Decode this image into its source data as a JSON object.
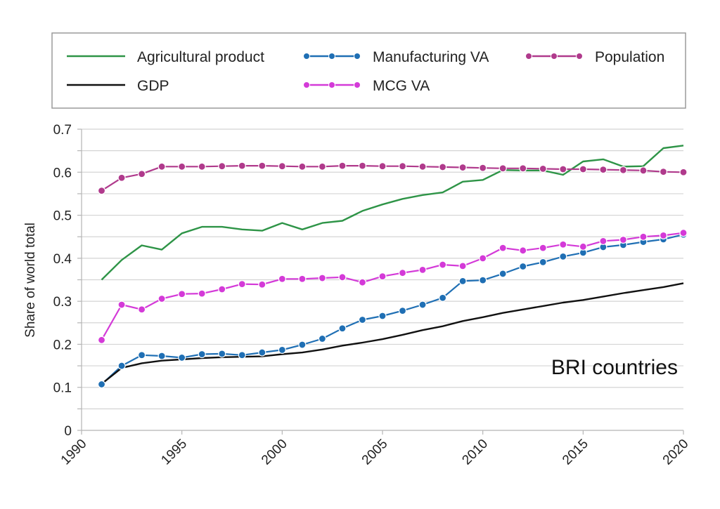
{
  "chart_data": {
    "type": "line",
    "title": "",
    "xlabel": "",
    "ylabel": "Share of world total",
    "annotation": "BRI countries",
    "xlim": [
      1990,
      2020
    ],
    "ylim": [
      0,
      0.7
    ],
    "xticks": [
      "1990",
      "1995",
      "2000",
      "2005",
      "2010",
      "2015",
      "2020"
    ],
    "yticks": [
      "0",
      "0.1",
      "0.2",
      "0.3",
      "0.4",
      "0.5",
      "0.6",
      "0.7"
    ],
    "grid": true,
    "legend_position": "top",
    "x": [
      1991,
      1992,
      1993,
      1994,
      1995,
      1996,
      1997,
      1998,
      1999,
      2000,
      2001,
      2002,
      2003,
      2004,
      2005,
      2006,
      2007,
      2008,
      2009,
      2010,
      2011,
      2012,
      2013,
      2014,
      2015,
      2016,
      2017,
      2018,
      2019,
      2020
    ],
    "series": [
      {
        "name": "Agricultural product",
        "color": "#2e9447",
        "markers": false,
        "values": [
          0.35,
          0.396,
          0.43,
          0.42,
          0.458,
          0.473,
          0.473,
          0.467,
          0.464,
          0.482,
          0.467,
          0.482,
          0.487,
          0.51,
          0.525,
          0.538,
          0.547,
          0.553,
          0.578,
          0.582,
          0.605,
          0.604,
          0.604,
          0.594,
          0.625,
          0.63,
          0.613,
          0.614,
          0.656,
          0.662
        ]
      },
      {
        "name": "Manufacturing VA",
        "color": "#1f6fb4",
        "markers": true,
        "values": [
          0.107,
          0.15,
          0.175,
          0.173,
          0.169,
          0.177,
          0.178,
          0.175,
          0.181,
          0.187,
          0.199,
          0.213,
          0.237,
          0.257,
          0.266,
          0.278,
          0.292,
          0.308,
          0.347,
          0.349,
          0.364,
          0.381,
          0.391,
          0.404,
          0.413,
          0.426,
          0.431,
          0.438,
          0.444,
          0.455
        ]
      },
      {
        "name": "Population",
        "color": "#b03a8c",
        "markers": true,
        "values": [
          0.557,
          0.587,
          0.596,
          0.613,
          0.613,
          0.613,
          0.614,
          0.615,
          0.615,
          0.614,
          0.613,
          0.613,
          0.615,
          0.615,
          0.614,
          0.614,
          0.613,
          0.612,
          0.611,
          0.61,
          0.609,
          0.609,
          0.608,
          0.607,
          0.607,
          0.606,
          0.605,
          0.604,
          0.601,
          0.6
        ]
      },
      {
        "name": "GDP",
        "color": "#111111",
        "markers": false,
        "values": [
          0.108,
          0.145,
          0.156,
          0.162,
          0.165,
          0.168,
          0.17,
          0.171,
          0.172,
          0.177,
          0.181,
          0.188,
          0.197,
          0.204,
          0.212,
          0.222,
          0.233,
          0.242,
          0.254,
          0.263,
          0.273,
          0.281,
          0.289,
          0.297,
          0.303,
          0.311,
          0.319,
          0.326,
          0.333,
          0.342
        ]
      },
      {
        "name": "MCG VA",
        "color": "#d43ad8",
        "markers": true,
        "values": [
          0.21,
          0.292,
          0.281,
          0.306,
          0.317,
          0.318,
          0.328,
          0.34,
          0.339,
          0.352,
          0.352,
          0.354,
          0.356,
          0.344,
          0.358,
          0.366,
          0.373,
          0.385,
          0.382,
          0.4,
          0.424,
          0.418,
          0.424,
          0.432,
          0.427,
          0.44,
          0.443,
          0.45,
          0.453,
          0.459
        ]
      }
    ]
  }
}
